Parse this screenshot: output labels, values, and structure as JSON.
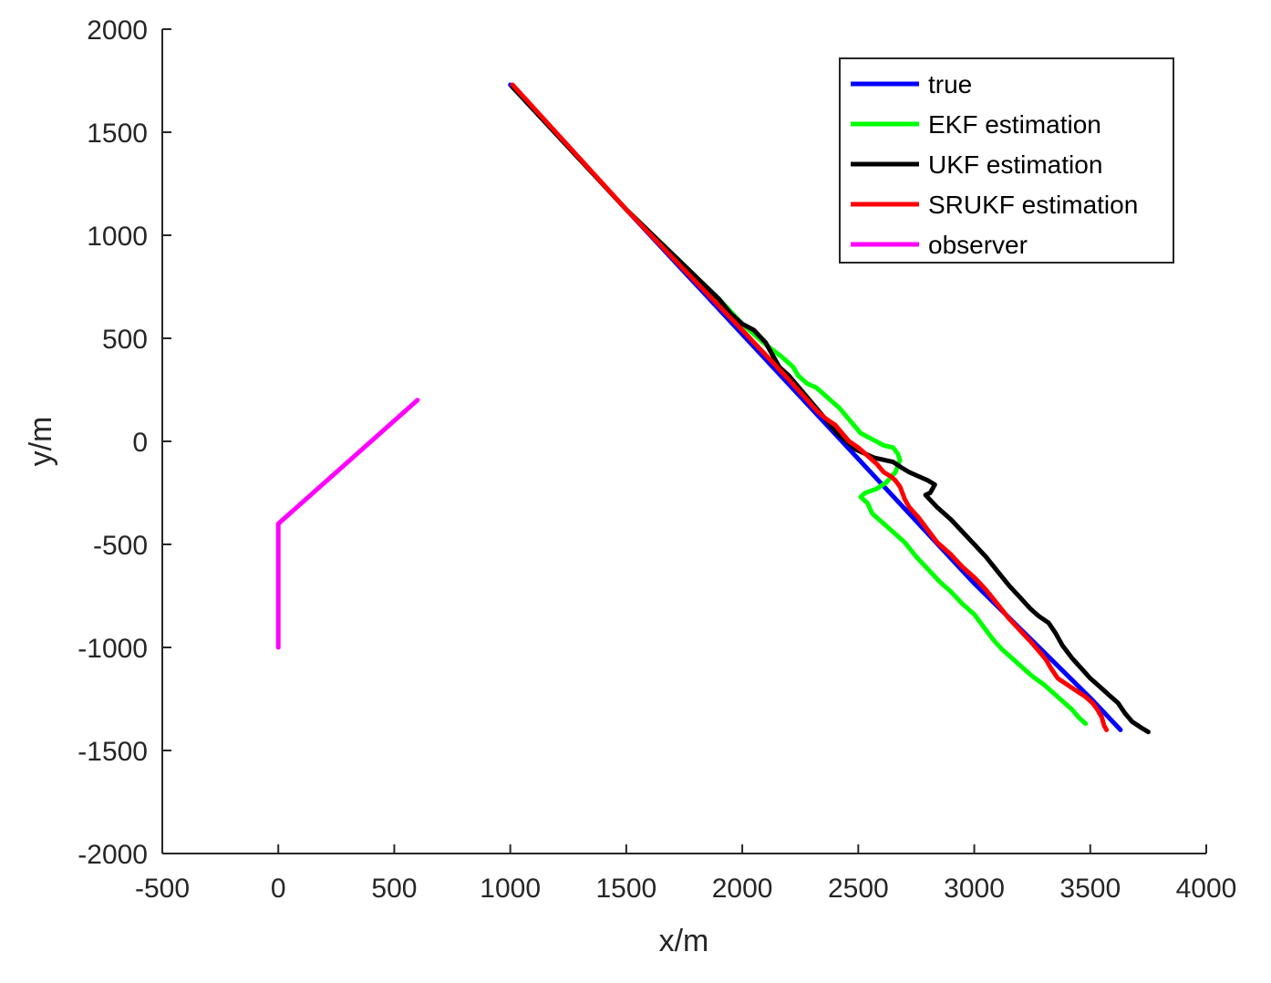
{
  "chart_data": {
    "type": "line",
    "title": "",
    "xlabel": "x/m",
    "ylabel": "y/m",
    "xlim": [
      -500,
      4000
    ],
    "ylim": [
      -2000,
      2000
    ],
    "xticks": [
      -500,
      0,
      500,
      1000,
      1500,
      2000,
      2500,
      3000,
      3500,
      4000
    ],
    "yticks": [
      -2000,
      -1500,
      -1000,
      -500,
      0,
      500,
      1000,
      1500,
      2000
    ],
    "grid": false,
    "legend_position": "top-right",
    "series": [
      {
        "name": "true",
        "color": "#0000ff",
        "x": [
          1000,
          1500,
          2000,
          2500,
          3000,
          3500,
          3630
        ],
        "y": [
          1730,
          1125,
          520,
          -85,
          -690,
          -1245,
          -1400
        ]
      },
      {
        "name": "EKF estimation",
        "color": "#00ff00",
        "x": [
          1010,
          1500,
          1900,
          2000,
          2100,
          2170,
          2220,
          2240,
          2280,
          2320,
          2350,
          2380,
          2420,
          2450,
          2480,
          2510,
          2560,
          2610,
          2650,
          2670,
          2680,
          2660,
          2620,
          2580,
          2530,
          2510,
          2540,
          2560,
          2600,
          2650,
          2700,
          2750,
          2800,
          2850,
          2900,
          2950,
          3000,
          3040,
          3080,
          3120,
          3160,
          3200,
          3250,
          3300,
          3340,
          3380,
          3420,
          3450,
          3480
        ],
        "y": [
          1720,
          1125,
          690,
          570,
          470,
          410,
          360,
          320,
          280,
          260,
          230,
          200,
          160,
          120,
          80,
          40,
          10,
          -20,
          -30,
          -60,
          -90,
          -150,
          -200,
          -230,
          -250,
          -270,
          -300,
          -350,
          -390,
          -440,
          -490,
          -560,
          -620,
          -680,
          -730,
          -790,
          -840,
          -900,
          -960,
          -1010,
          -1050,
          -1090,
          -1140,
          -1180,
          -1220,
          -1260,
          -1300,
          -1340,
          -1370
        ]
      },
      {
        "name": "UKF estimation",
        "color": "#000000",
        "x": [
          1010,
          1500,
          1900,
          1950,
          2000,
          2050,
          2100,
          2130,
          2160,
          2200,
          2230,
          2260,
          2290,
          2320,
          2350,
          2380,
          2410,
          2450,
          2490,
          2530,
          2570,
          2610,
          2650,
          2690,
          2720,
          2760,
          2800,
          2830,
          2810,
          2790,
          2840,
          2900,
          2950,
          3000,
          3050,
          3100,
          3150,
          3200,
          3240,
          3280,
          3320,
          3350,
          3380,
          3420,
          3460,
          3500,
          3540,
          3580,
          3620,
          3650,
          3680,
          3720,
          3750
        ],
        "y": [
          1720,
          1125,
          690,
          620,
          570,
          540,
          480,
          420,
          360,
          320,
          280,
          240,
          200,
          160,
          120,
          80,
          40,
          0,
          -40,
          -60,
          -80,
          -90,
          -100,
          -130,
          -150,
          -170,
          -190,
          -210,
          -250,
          -260,
          -320,
          -380,
          -440,
          -500,
          -560,
          -630,
          -700,
          -760,
          -810,
          -850,
          -880,
          -930,
          -990,
          -1050,
          -1100,
          -1150,
          -1190,
          -1230,
          -1270,
          -1320,
          -1360,
          -1390,
          -1410
        ]
      },
      {
        "name": "SRUKF estimation",
        "color": "#ff0000",
        "x": [
          1010,
          1500,
          2000,
          2100,
          2200,
          2280,
          2320,
          2360,
          2400,
          2430,
          2460,
          2500,
          2540,
          2580,
          2610,
          2640,
          2660,
          2680,
          2690,
          2700,
          2720,
          2760,
          2800,
          2840,
          2900,
          2950,
          3000,
          3050,
          3100,
          3150,
          3200,
          3250,
          3280,
          3310,
          3330,
          3360,
          3400,
          3440,
          3480,
          3510,
          3530,
          3550,
          3560,
          3570
        ],
        "y": [
          1730,
          1125,
          540,
          420,
          300,
          200,
          150,
          110,
          80,
          40,
          0,
          -30,
          -70,
          -110,
          -150,
          -170,
          -190,
          -220,
          -250,
          -280,
          -320,
          -370,
          -430,
          -490,
          -550,
          -610,
          -660,
          -720,
          -790,
          -860,
          -920,
          -980,
          -1020,
          -1060,
          -1100,
          -1150,
          -1180,
          -1210,
          -1240,
          -1270,
          -1300,
          -1340,
          -1380,
          -1400
        ]
      },
      {
        "name": "observer",
        "color": "#ff00ff",
        "x": [
          0,
          0,
          600
        ],
        "y": [
          -1000,
          -400,
          200
        ]
      }
    ]
  }
}
